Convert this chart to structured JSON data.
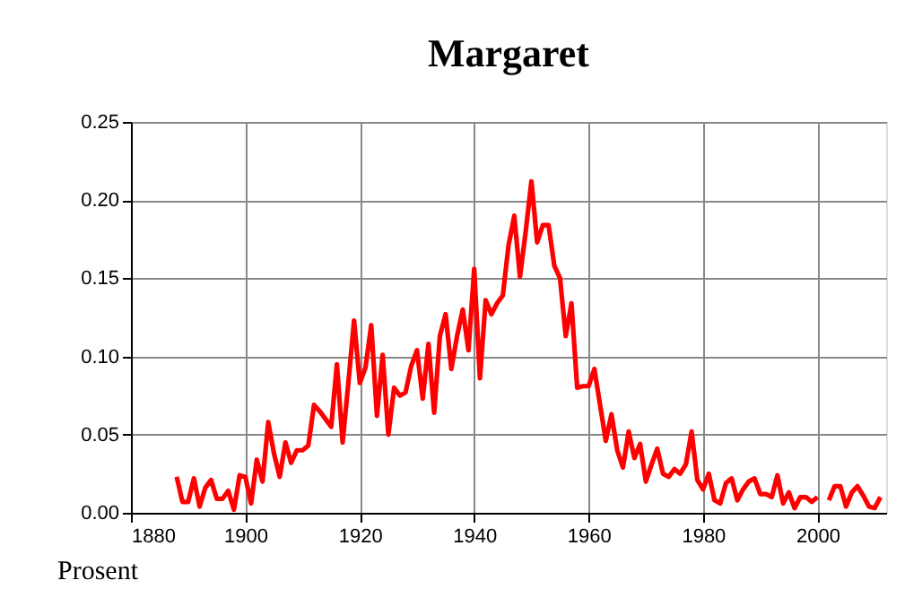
{
  "chart_data": {
    "type": "line",
    "title": "Margaret",
    "ylabel": "Prosent",
    "x": [
      1888,
      1889,
      1890,
      1891,
      1892,
      1893,
      1894,
      1895,
      1896,
      1897,
      1898,
      1899,
      1900,
      1901,
      1902,
      1903,
      1904,
      1905,
      1906,
      1907,
      1908,
      1909,
      1910,
      1911,
      1912,
      1913,
      1914,
      1915,
      1916,
      1917,
      1918,
      1919,
      1920,
      1921,
      1922,
      1923,
      1924,
      1925,
      1926,
      1927,
      1928,
      1929,
      1930,
      1931,
      1932,
      1933,
      1934,
      1935,
      1936,
      1937,
      1938,
      1939,
      1940,
      1941,
      1942,
      1943,
      1944,
      1945,
      1946,
      1947,
      1948,
      1949,
      1950,
      1951,
      1952,
      1953,
      1954,
      1955,
      1956,
      1957,
      1958,
      1959,
      1960,
      1961,
      1962,
      1963,
      1964,
      1965,
      1966,
      1967,
      1968,
      1969,
      1970,
      1971,
      1972,
      1973,
      1974,
      1975,
      1976,
      1977,
      1978,
      1979,
      1980,
      1981,
      1982,
      1983,
      1984,
      1985,
      1986,
      1987,
      1988,
      1989,
      1990,
      1991,
      1992,
      1993,
      1994,
      1995,
      1996,
      1997,
      1998,
      1999,
      2000,
      2001,
      2002,
      2003,
      2004,
      2005,
      2006,
      2007,
      2008,
      2009,
      2010,
      2011
    ],
    "series": [
      {
        "color": "#ff0000",
        "values": [
          0.023,
          0.007,
          0.007,
          0.022,
          0.004,
          0.016,
          0.021,
          0.009,
          0.009,
          0.014,
          0.002,
          0.024,
          0.023,
          0.006,
          0.034,
          0.02,
          0.058,
          0.038,
          0.023,
          0.045,
          0.032,
          0.04,
          0.04,
          0.043,
          0.069,
          0.065,
          0.06,
          0.055,
          0.095,
          0.045,
          0.083,
          0.123,
          0.083,
          0.093,
          0.12,
          0.062,
          0.101,
          0.05,
          0.08,
          0.075,
          0.077,
          0.094,
          0.104,
          0.073,
          0.108,
          0.064,
          0.113,
          0.127,
          0.092,
          0.113,
          0.13,
          0.104,
          0.156,
          0.086,
          0.136,
          0.127,
          0.134,
          0.139,
          0.171,
          0.19,
          0.151,
          0.18,
          0.212,
          0.173,
          0.184,
          0.184,
          0.158,
          0.15,
          0.113,
          0.134,
          0.08,
          0.081,
          0.081,
          0.092,
          0.069,
          0.046,
          0.063,
          0.04,
          0.029,
          0.052,
          0.035,
          0.044,
          0.02,
          0.031,
          0.041,
          0.025,
          0.023,
          0.028,
          0.025,
          0.031,
          0.052,
          0.021,
          0.015,
          0.025,
          0.008,
          0.006,
          0.019,
          0.022,
          0.008,
          0.015,
          0.02,
          0.022,
          0.012,
          0.012,
          0.01,
          0.024,
          0.006,
          0.013,
          0.003,
          0.01,
          0.01,
          0.007,
          0.01,
          null,
          0.008,
          0.017,
          0.017,
          0.004,
          0.013,
          0.017,
          0.011,
          0.004,
          0.003,
          0.01
        ]
      }
    ],
    "xlim": [
      1880,
      2012
    ],
    "xticks": [
      1880,
      1900,
      1920,
      1940,
      1960,
      1980,
      2000
    ],
    "ylim": [
      0,
      0.25
    ],
    "yticks": [
      {
        "value": 0,
        "label": "0.00"
      },
      0.05,
      {
        "value": 0.1,
        "label": "0.10"
      },
      0.15,
      {
        "value": 0.2,
        "label": "0.20"
      },
      0.25
    ],
    "grid": true,
    "legend": false,
    "marker": "none",
    "line_style": "solid"
  }
}
